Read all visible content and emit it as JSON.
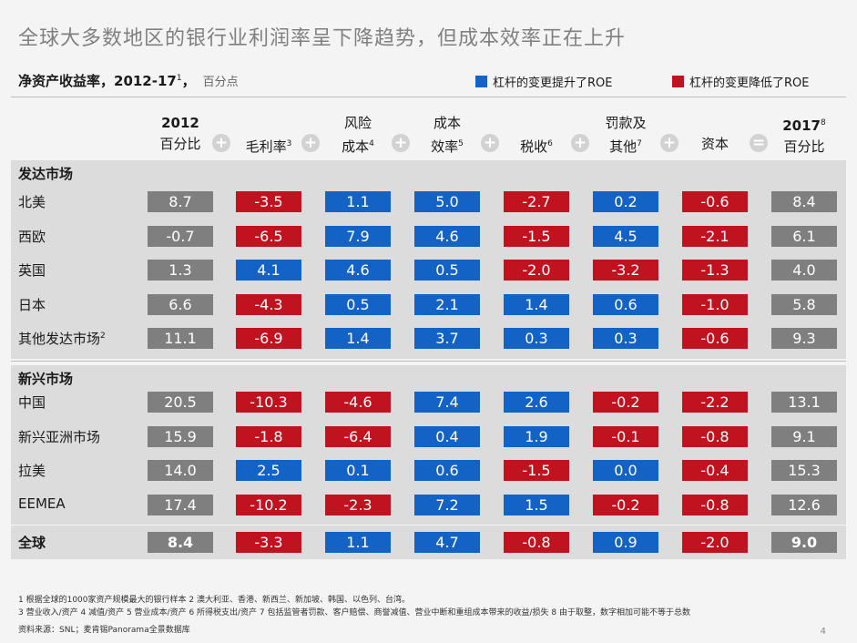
{
  "title": "全球大多数地区的银行业利润率呈下降趋势，但成本效率正在上升",
  "subtitle": {
    "text": "净资产收益率，2012-17",
    "sup": "1",
    "comma": "，",
    "unit": "百分点"
  },
  "legend": [
    {
      "label": "杠杆的变更提升了ROE",
      "color": "#1363c6"
    },
    {
      "label": "杠杆的变更降低了ROE",
      "color": "#c0121f"
    }
  ],
  "columns": [
    {
      "line1": "2012",
      "line2": "百分比",
      "sup": ""
    },
    {
      "line1": "",
      "line2": "毛利率",
      "sup": "3"
    },
    {
      "line1": "风险",
      "line2": "成本",
      "sup": "4"
    },
    {
      "line1": "成本",
      "line2": "效率",
      "sup": "5"
    },
    {
      "line1": "",
      "line2": "税收",
      "sup": "6"
    },
    {
      "line1": "罚款及",
      "line2": "其他",
      "sup": "7"
    },
    {
      "line1": "",
      "line2": "资本",
      "sup": ""
    },
    {
      "line1": "2017",
      "line1_sup": "8",
      "line2": "百分比",
      "sup": ""
    }
  ],
  "operators": [
    "+",
    "+",
    "+",
    "+",
    "+",
    "+",
    "="
  ],
  "colors": {
    "blue": "#1363c6",
    "red": "#c0121f",
    "grey": "#7f7f7f"
  },
  "chart_data": {
    "type": "table",
    "sections": [
      {
        "name": "发达市场",
        "rows": [
          {
            "label": "北美",
            "sup": "",
            "values": [
              "8.7",
              "-3.5",
              "1.1",
              "5.0",
              "-2.7",
              "0.2",
              "-0.6",
              "8.4"
            ],
            "colors": [
              "grey",
              "red",
              "blue",
              "blue",
              "red",
              "blue",
              "red",
              "grey"
            ]
          },
          {
            "label": "西欧",
            "sup": "",
            "values": [
              "-0.7",
              "-6.5",
              "7.9",
              "4.6",
              "-1.5",
              "4.5",
              "-2.1",
              "6.1"
            ],
            "colors": [
              "grey",
              "red",
              "blue",
              "blue",
              "red",
              "blue",
              "red",
              "grey"
            ]
          },
          {
            "label": "英国",
            "sup": "",
            "values": [
              "1.3",
              "4.1",
              "4.6",
              "0.5",
              "-2.0",
              "-3.2",
              "-1.3",
              "4.0"
            ],
            "colors": [
              "grey",
              "blue",
              "blue",
              "blue",
              "red",
              "red",
              "red",
              "grey"
            ]
          },
          {
            "label": "日本",
            "sup": "",
            "values": [
              "6.6",
              "-4.3",
              "0.5",
              "2.1",
              "1.4",
              "0.6",
              "-1.0",
              "5.8"
            ],
            "colors": [
              "grey",
              "red",
              "blue",
              "blue",
              "blue",
              "blue",
              "red",
              "grey"
            ]
          },
          {
            "label": "其他发达市场",
            "sup": "2",
            "values": [
              "11.1",
              "-6.9",
              "1.4",
              "3.7",
              "0.3",
              "0.3",
              "-0.6",
              "9.3"
            ],
            "colors": [
              "grey",
              "red",
              "blue",
              "blue",
              "blue",
              "blue",
              "red",
              "grey"
            ]
          }
        ]
      },
      {
        "name": "新兴市场",
        "rows": [
          {
            "label": "中国",
            "sup": "",
            "values": [
              "20.5",
              "-10.3",
              "-4.6",
              "7.4",
              "2.6",
              "-0.2",
              "-2.2",
              "13.1"
            ],
            "colors": [
              "grey",
              "red",
              "red",
              "blue",
              "blue",
              "red",
              "red",
              "grey"
            ]
          },
          {
            "label": "新兴亚洲市场",
            "sup": "",
            "values": [
              "15.9",
              "-1.8",
              "-6.4",
              "0.4",
              "1.9",
              "-0.1",
              "-0.8",
              "9.1"
            ],
            "colors": [
              "grey",
              "red",
              "red",
              "blue",
              "blue",
              "red",
              "red",
              "grey"
            ]
          },
          {
            "label": "拉美",
            "sup": "",
            "values": [
              "14.0",
              "2.5",
              "0.1",
              "0.6",
              "-1.5",
              "0.0",
              "-0.4",
              "15.3"
            ],
            "colors": [
              "grey",
              "blue",
              "blue",
              "blue",
              "red",
              "blue",
              "red",
              "grey"
            ]
          },
          {
            "label": "EEMEA",
            "sup": "",
            "values": [
              "17.4",
              "-10.2",
              "-2.3",
              "7.2",
              "1.5",
              "-0.2",
              "-0.8",
              "12.6"
            ],
            "colors": [
              "grey",
              "red",
              "red",
              "blue",
              "blue",
              "red",
              "red",
              "grey"
            ]
          }
        ]
      }
    ],
    "total": {
      "label": "全球",
      "values": [
        "8.4",
        "-3.3",
        "1.1",
        "4.7",
        "-0.8",
        "0.9",
        "-2.0",
        "9.0"
      ],
      "colors": [
        "grey",
        "red",
        "blue",
        "blue",
        "red",
        "blue",
        "red",
        "grey"
      ]
    }
  },
  "footnotes": [
    "1 根据全球的1000家资产规模最大的银行样本 2 澳大利亚、香港、新西兰、新加坡、韩国、以色列、台湾。",
    "3 营业收入/资产 4 减值/资产 5 营业成本/资产 6 所得税支出/资产 7 包括监管者罚款、客户赔偿、商誉减值、营业中断和重组成本带来的收益/损失 8 由于取整，数字相加可能不等于总数",
    "资料来源：SNL；麦肯锡Panorama全景数据库"
  ],
  "page_number": "4"
}
